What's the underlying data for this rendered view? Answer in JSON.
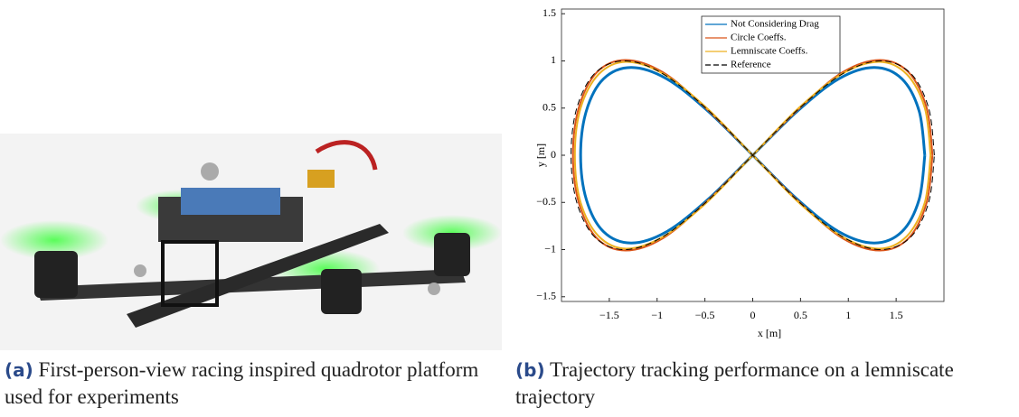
{
  "captions": [
    {
      "label": "(a)",
      "text": "First-person-view racing inspired quadrotor platform used for experiments"
    },
    {
      "label": "(b)",
      "text": "Trajectory tracking performance on a lemniscate trajectory"
    }
  ],
  "chart_data": {
    "type": "line",
    "xlabel": "x [m]",
    "ylabel": "y [m]",
    "xlim": [
      -2,
      2
    ],
    "ylim": [
      -1.55,
      1.55
    ],
    "xticks": [
      {
        "value": -1.5,
        "label": "−1.5"
      },
      {
        "value": -1,
        "label": "−1"
      },
      {
        "value": -0.5,
        "label": "−0.5"
      },
      0,
      0.5,
      1,
      1.5
    ],
    "yticks": [
      {
        "value": -1.5,
        "label": "−1.5"
      },
      {
        "value": -1,
        "label": "−1"
      },
      {
        "value": -0.5,
        "label": "−0.5"
      },
      0,
      0.5,
      1,
      1.5
    ],
    "legend": "upper right",
    "series": [
      {
        "name": "Not Considering Drag",
        "color": "#0072bd",
        "width": 3,
        "x": [
          1.8,
          1.74,
          1.56,
          1.27,
          0.9,
          0.47,
          0,
          -0.47,
          -0.9,
          -1.27,
          -1.56,
          -1.74,
          -1.8,
          -1.74,
          -1.56,
          -1.27,
          -0.9,
          -0.47,
          0,
          0.47,
          0.9,
          1.27,
          1.56,
          1.74,
          1.8
        ],
        "values": [
          0,
          0.47,
          0.81,
          0.93,
          0.81,
          0.47,
          0,
          -0.47,
          -0.81,
          -0.93,
          -0.81,
          -0.47,
          0,
          0.47,
          0.81,
          0.93,
          0.81,
          0.47,
          0,
          -0.47,
          -0.81,
          -0.93,
          -0.81,
          -0.47,
          0
        ]
      },
      {
        "name": "Circle Coeffs.",
        "color": "#d95319",
        "width": 2,
        "x": [
          1.88,
          1.82,
          1.63,
          1.33,
          0.94,
          0.49,
          0,
          -0.49,
          -0.94,
          -1.33,
          -1.63,
          -1.82,
          -1.88,
          -1.82,
          -1.63,
          -1.33,
          -0.94,
          -0.49,
          0,
          0.49,
          0.94,
          1.33,
          1.63,
          1.82,
          1.88
        ],
        "values": [
          0,
          0.5,
          0.88,
          1.01,
          0.88,
          0.5,
          0,
          -0.5,
          -0.88,
          -1.01,
          -0.88,
          -0.5,
          0,
          0.5,
          0.88,
          1.01,
          0.88,
          0.5,
          0,
          -0.5,
          -0.88,
          -1.01,
          -0.88,
          -0.5,
          0
        ]
      },
      {
        "name": "Lemniscate Coeffs.",
        "color": "#edb120",
        "width": 2,
        "x": [
          1.86,
          1.8,
          1.61,
          1.32,
          0.93,
          0.48,
          0,
          -0.48,
          -0.93,
          -1.32,
          -1.61,
          -1.8,
          -1.86,
          -1.8,
          -1.61,
          -1.32,
          -0.93,
          -0.48,
          0,
          0.48,
          0.93,
          1.32,
          1.61,
          1.8,
          1.86
        ],
        "values": [
          0,
          0.5,
          0.86,
          0.99,
          0.86,
          0.5,
          0,
          -0.5,
          -0.86,
          -0.99,
          -0.86,
          -0.5,
          0,
          0.5,
          0.86,
          0.99,
          0.86,
          0.5,
          0,
          -0.5,
          -0.86,
          -0.99,
          -0.86,
          -0.5,
          0
        ]
      },
      {
        "name": "Reference",
        "color": "#000000",
        "width": 1,
        "dashed": true,
        "x": [
          1.9,
          1.84,
          1.65,
          1.34,
          0.95,
          0.49,
          0,
          -0.49,
          -0.95,
          -1.34,
          -1.65,
          -1.84,
          -1.9,
          -1.84,
          -1.65,
          -1.34,
          -0.95,
          -0.49,
          0,
          0.49,
          0.95,
          1.34,
          1.65,
          1.84,
          1.9
        ],
        "values": [
          0,
          0.5,
          0.87,
          1,
          0.87,
          0.5,
          0,
          -0.5,
          -0.87,
          -1,
          -0.87,
          -0.5,
          0,
          0.5,
          0.87,
          1,
          0.87,
          0.5,
          0,
          -0.5,
          -0.87,
          -1,
          -0.87,
          -0.5,
          0
        ]
      }
    ]
  }
}
